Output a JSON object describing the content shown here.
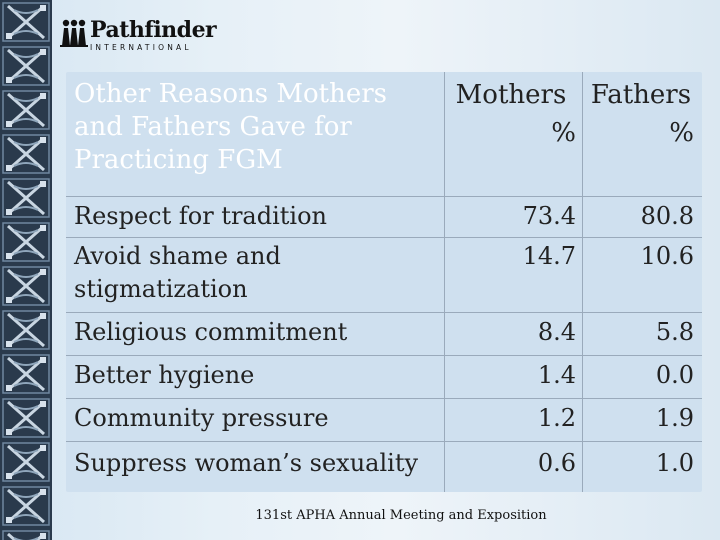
{
  "brand": {
    "name": "Pathfinder",
    "subtitle": "INTERNATIONAL"
  },
  "table": {
    "header": {
      "label": "Other Reasons Mothers and Fathers Gave for Practicing FGM",
      "mothers": "Mothers",
      "fathers": "Fathers",
      "mothers_unit": "%",
      "fathers_unit": "%"
    },
    "rows": [
      {
        "label": "Respect for tradition",
        "mothers": "73.4",
        "fathers": "80.8"
      },
      {
        "label": "Avoid shame and stigmatization",
        "mothers": "14.7",
        "fathers": "10.6"
      },
      {
        "label": "Religious commitment",
        "mothers": "8.4",
        "fathers": "5.8"
      },
      {
        "label": "Better hygiene",
        "mothers": "1.4",
        "fathers": "0.0"
      },
      {
        "label": "Community pressure",
        "mothers": "1.2",
        "fathers": "1.9"
      },
      {
        "label": "Suppress woman’s sexuality",
        "mothers": "0.6",
        "fathers": "1.0"
      }
    ]
  },
  "footer": "131st APHA Annual Meeting and Exposition",
  "colors": {
    "border_dark": "#2a3a4c",
    "table_fill": "#cfe0ef",
    "header_text": "#ffffff"
  }
}
